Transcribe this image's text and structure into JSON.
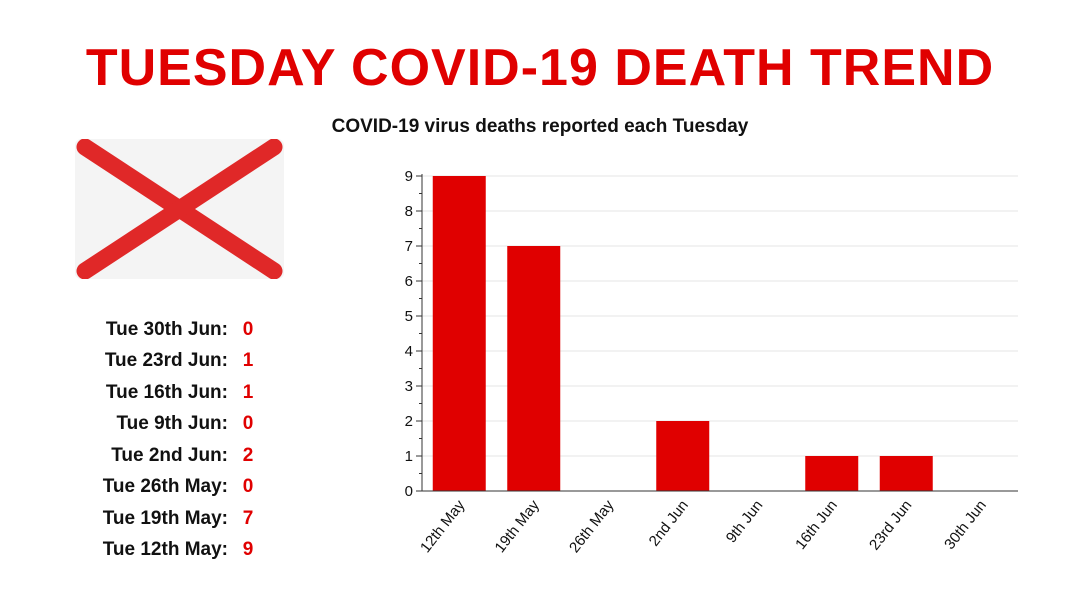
{
  "header": {
    "title": "TUESDAY COVID-19 DEATH TREND",
    "subtitle": "COVID-19 virus deaths reported each Tuesday"
  },
  "colors": {
    "accent": "#e00000",
    "flag_cross": "#e02828",
    "flag_field": "#f4f4f4"
  },
  "tally": [
    {
      "label": "Tue 30th Jun:",
      "value": "0"
    },
    {
      "label": "Tue 23rd Jun:",
      "value": "1"
    },
    {
      "label": "Tue 16th Jun:",
      "value": "1"
    },
    {
      "label": "Tue 9th Jun:",
      "value": "0"
    },
    {
      "label": "Tue 2nd Jun:",
      "value": "2"
    },
    {
      "label": "Tue 26th May:",
      "value": "0"
    },
    {
      "label": "Tue 19th May:",
      "value": "7"
    },
    {
      "label": "Tue 12th May:",
      "value": "9"
    }
  ],
  "chart_data": {
    "type": "bar",
    "title": "COVID-19 virus deaths reported each Tuesday",
    "categories": [
      "12th May",
      "19th May",
      "26th May",
      "2nd Jun",
      "9th Jun",
      "16th Jun",
      "23rd Jun",
      "30th Jun"
    ],
    "values": [
      9,
      7,
      0,
      2,
      0,
      1,
      1,
      0
    ],
    "xlabel": "",
    "ylabel": "",
    "ylim": [
      0,
      9
    ],
    "yticks": [
      0,
      1,
      2,
      3,
      4,
      5,
      6,
      7,
      8,
      9
    ],
    "grid": true,
    "color": "#e00000"
  }
}
